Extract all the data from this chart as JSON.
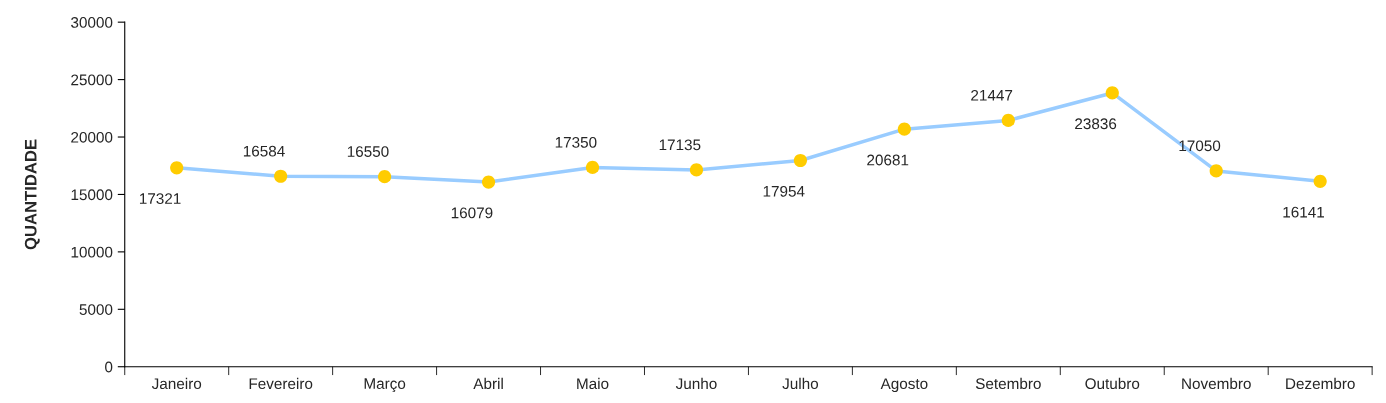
{
  "chart_data": {
    "type": "line",
    "ylabel": "QUANTIDADE",
    "categories": [
      "Janeiro",
      "Fevereiro",
      "Março",
      "Abril",
      "Maio",
      "Junho",
      "Julho",
      "Agosto",
      "Setembro",
      "Outubro",
      "Novembro",
      "Dezembro"
    ],
    "series": [
      {
        "color": "#99ccff",
        "colors": [
          "#ffcc00",
          "#ffcc00",
          "#ffcc00",
          "#ffcc00",
          "#ffcc00",
          "#ffcc00",
          "#ffcc00",
          "#ffcc00",
          "#ffcc00",
          "#ffcc00",
          "#ffcc00",
          "#ffcc00"
        ],
        "values": [
          17321,
          16584,
          16550,
          16079,
          17350,
          17135,
          17954,
          20681,
          21447,
          23836,
          17050,
          16141
        ]
      }
    ],
    "ylim": [
      0,
      30000
    ],
    "yticks": [
      0,
      5000,
      10000,
      15000,
      20000,
      25000,
      30000
    ],
    "data_labels": true,
    "grid": false,
    "marker": "circle",
    "line_style": "solid"
  }
}
